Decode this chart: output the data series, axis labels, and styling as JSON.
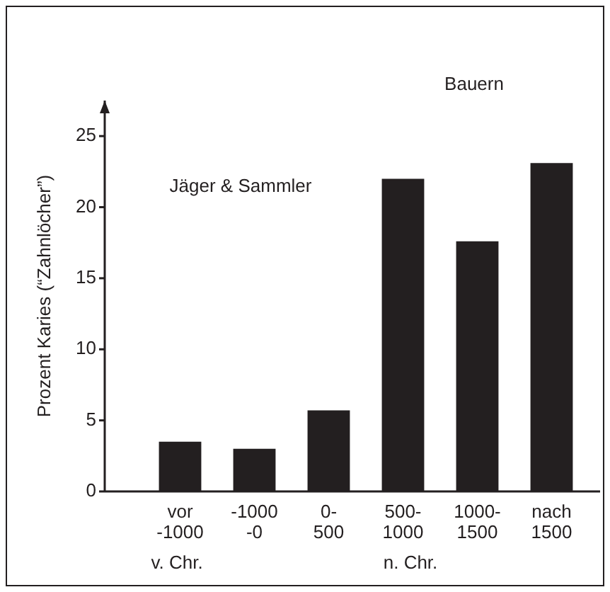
{
  "chart_data": {
    "type": "bar",
    "ylabel": "Prozent Karies (“Zahnlöcher”)",
    "categories": [
      "vor -1000",
      "-1000 -0",
      "0- 500",
      "500- 1000",
      "1000- 1500",
      "nach 1500"
    ],
    "values": [
      3.5,
      3.0,
      5.7,
      22.0,
      17.6,
      23.1
    ],
    "color": "#231f20",
    "ylim": [
      0,
      27.5
    ],
    "yticks": [
      0,
      5,
      10,
      15,
      20,
      25
    ],
    "grid": false,
    "legend": false,
    "annotations": [
      "Jäger & Sammler",
      "Bauern",
      "v. Chr.",
      "n. Chr."
    ]
  }
}
